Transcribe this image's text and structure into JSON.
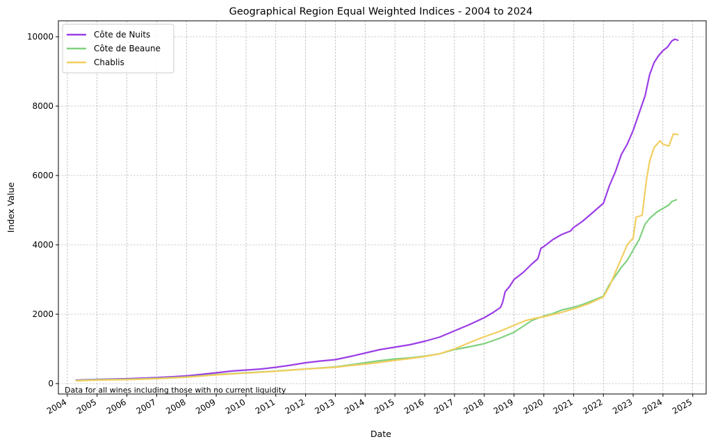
{
  "chart_data": {
    "type": "line",
    "title": "Geographical Region Equal Weighted Indices  - 2004 to 2024",
    "xlabel": "Date",
    "ylabel": "Index Value",
    "xlim": [
      2003.7,
      2025.45
    ],
    "ylim": [
      -300,
      10460
    ],
    "x_ticks": [
      2004,
      2005,
      2006,
      2007,
      2008,
      2009,
      2010,
      2011,
      2012,
      2013,
      2014,
      2015,
      2016,
      2017,
      2018,
      2019,
      2020,
      2021,
      2022,
      2023,
      2024,
      2025
    ],
    "x_tick_labels": [
      "2004",
      "2005",
      "2006",
      "2007",
      "2008",
      "2009",
      "2010",
      "2011",
      "2012",
      "2013",
      "2014",
      "2015",
      "2016",
      "2017",
      "2018",
      "2019",
      "2020",
      "2021",
      "2022",
      "2023",
      "2024",
      "2025"
    ],
    "y_ticks": [
      0,
      2000,
      4000,
      6000,
      8000,
      10000
    ],
    "y_tick_labels": [
      "0",
      "2000",
      "4000",
      "6000",
      "8000",
      "10000"
    ],
    "grid": true,
    "legend_position": "top-left",
    "annotation": "Data for all wines including those with no current liquidity",
    "annotation_color": "#9932CC",
    "series": [
      {
        "name": "Côte de Nuits",
        "color": "#9B3DE6",
        "points": [
          [
            2004.3,
            100
          ],
          [
            2005,
            120
          ],
          [
            2006,
            140
          ],
          [
            2007,
            175
          ],
          [
            2008,
            220
          ],
          [
            2009,
            310
          ],
          [
            2009.5,
            360
          ],
          [
            2010,
            390
          ],
          [
            2010.5,
            420
          ],
          [
            2011,
            470
          ],
          [
            2011.5,
            530
          ],
          [
            2012,
            600
          ],
          [
            2012.5,
            650
          ],
          [
            2013,
            690
          ],
          [
            2013.5,
            780
          ],
          [
            2014,
            880
          ],
          [
            2014.5,
            980
          ],
          [
            2015,
            1050
          ],
          [
            2015.5,
            1120
          ],
          [
            2016,
            1220
          ],
          [
            2016.5,
            1340
          ],
          [
            2017,
            1520
          ],
          [
            2017.5,
            1700
          ],
          [
            2018,
            1900
          ],
          [
            2018.3,
            2050
          ],
          [
            2018.55,
            2200
          ],
          [
            2018.62,
            2350
          ],
          [
            2018.7,
            2650
          ],
          [
            2018.85,
            2800
          ],
          [
            2019,
            3000
          ],
          [
            2019.3,
            3200
          ],
          [
            2019.6,
            3450
          ],
          [
            2019.8,
            3600
          ],
          [
            2019.9,
            3900
          ],
          [
            2020,
            3950
          ],
          [
            2020.3,
            4150
          ],
          [
            2020.6,
            4300
          ],
          [
            2020.9,
            4400
          ],
          [
            2021,
            4500
          ],
          [
            2021.3,
            4680
          ],
          [
            2021.6,
            4900
          ],
          [
            2021.8,
            5050
          ],
          [
            2022,
            5200
          ],
          [
            2022.2,
            5700
          ],
          [
            2022.4,
            6100
          ],
          [
            2022.6,
            6600
          ],
          [
            2022.8,
            6900
          ],
          [
            2023,
            7300
          ],
          [
            2023.2,
            7800
          ],
          [
            2023.4,
            8300
          ],
          [
            2023.55,
            8900
          ],
          [
            2023.7,
            9250
          ],
          [
            2023.85,
            9450
          ],
          [
            2024,
            9600
          ],
          [
            2024.15,
            9700
          ],
          [
            2024.3,
            9880
          ],
          [
            2024.4,
            9930
          ],
          [
            2024.5,
            9900
          ]
        ]
      },
      {
        "name": "Côte de Beaune",
        "color": "#7FD17F",
        "points": [
          [
            2004.3,
            90
          ],
          [
            2005,
            110
          ],
          [
            2006,
            125
          ],
          [
            2007,
            150
          ],
          [
            2008,
            190
          ],
          [
            2009,
            260
          ],
          [
            2010,
            310
          ],
          [
            2011,
            360
          ],
          [
            2012,
            420
          ],
          [
            2013,
            480
          ],
          [
            2013.5,
            540
          ],
          [
            2014,
            600
          ],
          [
            2014.5,
            660
          ],
          [
            2015,
            710
          ],
          [
            2015.5,
            740
          ],
          [
            2016,
            790
          ],
          [
            2016.5,
            860
          ],
          [
            2017,
            980
          ],
          [
            2017.5,
            1060
          ],
          [
            2018,
            1150
          ],
          [
            2018.5,
            1300
          ],
          [
            2019,
            1480
          ],
          [
            2019.3,
            1650
          ],
          [
            2019.6,
            1820
          ],
          [
            2020,
            1950
          ],
          [
            2020.3,
            2020
          ],
          [
            2020.6,
            2120
          ],
          [
            2021,
            2200
          ],
          [
            2021.3,
            2280
          ],
          [
            2021.6,
            2380
          ],
          [
            2022,
            2520
          ],
          [
            2022.2,
            2850
          ],
          [
            2022.4,
            3100
          ],
          [
            2022.6,
            3350
          ],
          [
            2022.8,
            3550
          ],
          [
            2023,
            3850
          ],
          [
            2023.2,
            4150
          ],
          [
            2023.4,
            4600
          ],
          [
            2023.55,
            4760
          ],
          [
            2023.8,
            4950
          ],
          [
            2024,
            5050
          ],
          [
            2024.2,
            5150
          ],
          [
            2024.3,
            5250
          ],
          [
            2024.45,
            5300
          ]
        ]
      },
      {
        "name": "Chablis",
        "color": "#F2CE5F",
        "points": [
          [
            2004.3,
            80
          ],
          [
            2005,
            100
          ],
          [
            2006,
            115
          ],
          [
            2007,
            140
          ],
          [
            2008,
            185
          ],
          [
            2009,
            250
          ],
          [
            2010,
            305
          ],
          [
            2011,
            355
          ],
          [
            2012,
            420
          ],
          [
            2013,
            470
          ],
          [
            2013.5,
            520
          ],
          [
            2014,
            560
          ],
          [
            2014.5,
            610
          ],
          [
            2015,
            670
          ],
          [
            2015.5,
            720
          ],
          [
            2016,
            780
          ],
          [
            2016.5,
            860
          ],
          [
            2017,
            1000
          ],
          [
            2017.5,
            1180
          ],
          [
            2018,
            1350
          ],
          [
            2018.5,
            1500
          ],
          [
            2019,
            1680
          ],
          [
            2019.4,
            1820
          ],
          [
            2019.7,
            1880
          ],
          [
            2020,
            1930
          ],
          [
            2020.5,
            2030
          ],
          [
            2021,
            2150
          ],
          [
            2021.5,
            2300
          ],
          [
            2022,
            2500
          ],
          [
            2022.2,
            2800
          ],
          [
            2022.4,
            3200
          ],
          [
            2022.6,
            3600
          ],
          [
            2022.8,
            4000
          ],
          [
            2023,
            4200
          ],
          [
            2023.1,
            4800
          ],
          [
            2023.3,
            4850
          ],
          [
            2023.45,
            5900
          ],
          [
            2023.55,
            6400
          ],
          [
            2023.7,
            6800
          ],
          [
            2023.9,
            7000
          ],
          [
            2024,
            6900
          ],
          [
            2024.2,
            6850
          ],
          [
            2024.35,
            7200
          ],
          [
            2024.5,
            7180
          ]
        ]
      }
    ]
  }
}
